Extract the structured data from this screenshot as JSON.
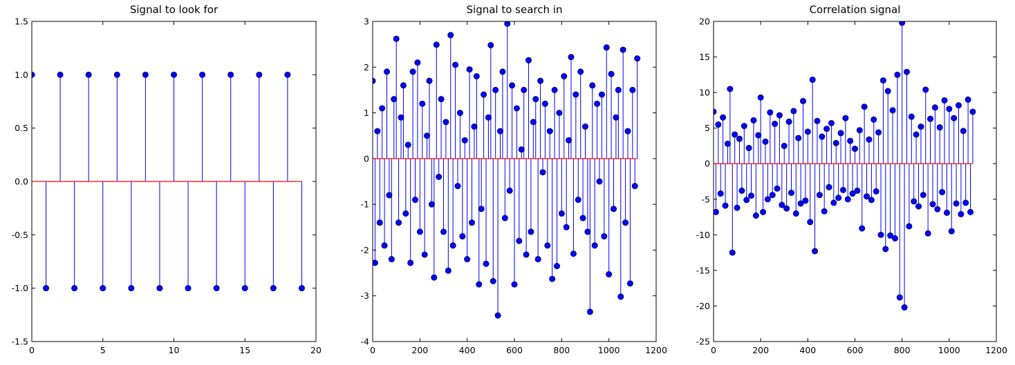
{
  "chart_data": [
    {
      "type": "stem",
      "title": "Signal to look for",
      "x": [
        0,
        1,
        2,
        3,
        4,
        5,
        6,
        7,
        8,
        9,
        10,
        11,
        12,
        13,
        14,
        15,
        16,
        17,
        18,
        19
      ],
      "values": [
        1,
        -1,
        1,
        -1,
        1,
        -1,
        1,
        -1,
        1,
        -1,
        1,
        -1,
        1,
        -1,
        1,
        -1,
        1,
        -1,
        1,
        -1
      ],
      "color": "#0000ff",
      "baseline_color": "#ff0000",
      "xlim": [
        0,
        20
      ],
      "xticks": [
        0,
        5,
        10,
        15,
        20
      ],
      "ylim": [
        -1.5,
        1.5
      ],
      "yticks": [
        -1.5,
        {
          "value": -1,
          "label": "-1.0"
        },
        -0.5,
        {
          "value": 0,
          "label": "0.0"
        },
        0.5,
        {
          "value": 1,
          "label": "1.0"
        },
        1.5
      ]
    },
    {
      "type": "stem",
      "title": "Signal to search in",
      "x": [
        0,
        10,
        20,
        30,
        40,
        50,
        60,
        70,
        80,
        90,
        100,
        110,
        120,
        130,
        140,
        150,
        160,
        170,
        180,
        190,
        200,
        210,
        220,
        230,
        240,
        250,
        260,
        270,
        280,
        290,
        300,
        310,
        320,
        330,
        340,
        350,
        360,
        370,
        380,
        390,
        400,
        410,
        420,
        430,
        440,
        450,
        460,
        470,
        480,
        490,
        500,
        510,
        520,
        530,
        540,
        550,
        560,
        570,
        580,
        590,
        600,
        610,
        620,
        630,
        640,
        650,
        660,
        670,
        680,
        690,
        700,
        710,
        720,
        730,
        740,
        750,
        760,
        770,
        780,
        790,
        800,
        810,
        820,
        830,
        840,
        850,
        860,
        870,
        880,
        890,
        900,
        910,
        920,
        930,
        940,
        950,
        960,
        970,
        980,
        990,
        1000,
        1010,
        1020,
        1030,
        1040,
        1050,
        1060,
        1070,
        1080,
        1090,
        1100,
        1110,
        1120
      ],
      "values": [
        1.7,
        -2.28,
        0.6,
        -1.4,
        1.1,
        -1.9,
        1.9,
        -0.8,
        -2.2,
        1.3,
        2.62,
        -1.4,
        0.9,
        1.6,
        -1.2,
        0.3,
        -2.28,
        1.9,
        -0.9,
        2.1,
        -1.6,
        1.2,
        -2.1,
        0.5,
        1.7,
        -1.0,
        -2.6,
        2.49,
        -0.4,
        1.3,
        -1.6,
        0.8,
        -2.45,
        2.7,
        -1.9,
        2.05,
        -0.6,
        1.0,
        -1.7,
        0.4,
        -2.2,
        1.95,
        -1.4,
        0.7,
        1.8,
        -2.75,
        -1.1,
        1.4,
        -2.3,
        0.9,
        2.48,
        -2.68,
        1.5,
        -3.43,
        0.6,
        1.9,
        -1.3,
        2.95,
        -0.7,
        1.6,
        -2.75,
        1.1,
        -1.8,
        0.2,
        1.5,
        -2.1,
        2.15,
        -1.6,
        0.8,
        1.3,
        -2.2,
        1.7,
        -0.3,
        1.2,
        -1.9,
        0.6,
        -2.63,
        1.5,
        -2.35,
        1.0,
        -1.2,
        1.8,
        -1.5,
        0.4,
        2.22,
        -2.08,
        1.4,
        -0.9,
        1.9,
        -1.3,
        0.7,
        -1.6,
        -3.35,
        1.6,
        -1.9,
        1.2,
        -0.5,
        1.4,
        -1.7,
        2.43,
        -2.53,
        1.85,
        -1.1,
        0.9,
        1.5,
        -3.02,
        2.38,
        -1.4,
        0.6,
        -2.73,
        1.5,
        -0.6,
        2.19
      ],
      "color": "#0000ff",
      "baseline_color": "#ff0000",
      "xlim": [
        0,
        1200
      ],
      "xticks": [
        0,
        200,
        400,
        600,
        800,
        1000,
        1200
      ],
      "ylim": [
        -4,
        3
      ],
      "yticks": [
        -4,
        -3,
        -2,
        -1,
        0,
        1,
        2,
        3
      ]
    },
    {
      "type": "stem",
      "title": "Correlation signal",
      "x": [
        0,
        10,
        20,
        30,
        40,
        50,
        60,
        70,
        80,
        90,
        100,
        110,
        120,
        130,
        140,
        150,
        160,
        170,
        180,
        190,
        200,
        210,
        220,
        230,
        240,
        250,
        260,
        270,
        280,
        290,
        300,
        310,
        320,
        330,
        340,
        350,
        360,
        370,
        380,
        390,
        400,
        410,
        420,
        430,
        440,
        450,
        460,
        470,
        480,
        490,
        500,
        510,
        520,
        530,
        540,
        550,
        560,
        570,
        580,
        590,
        600,
        610,
        620,
        630,
        640,
        650,
        660,
        670,
        680,
        690,
        700,
        710,
        720,
        730,
        740,
        750,
        760,
        770,
        780,
        790,
        800,
        810,
        820,
        830,
        840,
        850,
        860,
        870,
        880,
        890,
        900,
        910,
        920,
        930,
        940,
        950,
        960,
        970,
        980,
        990,
        1000,
        1010,
        1020,
        1030,
        1040,
        1050,
        1060,
        1070,
        1080,
        1090,
        1100
      ],
      "values": [
        7.3,
        -6.8,
        5.5,
        -4.2,
        6.5,
        -5.9,
        2.8,
        10.5,
        -12.5,
        4.1,
        -6.2,
        3.5,
        -3.8,
        5.3,
        -5.1,
        2.2,
        -4.5,
        6.1,
        -7.3,
        4.0,
        9.3,
        -6.8,
        3.1,
        -5.0,
        7.2,
        -4.4,
        5.6,
        -3.5,
        6.8,
        -5.8,
        2.5,
        -6.3,
        5.9,
        -4.1,
        7.4,
        -7.0,
        3.6,
        -5.6,
        8.8,
        -5.2,
        4.5,
        -8.2,
        11.8,
        -12.3,
        6.0,
        -4.4,
        3.8,
        -6.7,
        4.9,
        -3.3,
        5.7,
        -5.5,
        2.9,
        -4.8,
        4.3,
        -3.7,
        6.4,
        -5.0,
        3.2,
        -4.2,
        2.1,
        -3.8,
        4.7,
        -9.1,
        8.0,
        -4.6,
        3.4,
        -5.1,
        6.2,
        -3.9,
        4.4,
        -10.0,
        11.7,
        -12.0,
        10.2,
        -10.1,
        7.5,
        -10.5,
        12.5,
        -18.8,
        19.8,
        -20.2,
        12.9,
        -8.8,
        6.6,
        -5.3,
        4.1,
        -6.0,
        5.2,
        -4.4,
        10.4,
        -9.8,
        6.3,
        -5.7,
        7.9,
        -6.4,
        5.1,
        -4.0,
        8.9,
        -6.9,
        7.7,
        -9.5,
        6.4,
        -5.6,
        8.2,
        -7.1,
        4.6,
        -5.5,
        9.0,
        -6.8,
        7.3
      ],
      "color": "#0000ff",
      "baseline_color": "#ff0000",
      "xlim": [
        0,
        1200
      ],
      "xticks": [
        0,
        200,
        400,
        600,
        800,
        1000,
        1200
      ],
      "ylim": [
        -25,
        20
      ],
      "yticks": [
        -25,
        -20,
        -15,
        -10,
        -5,
        0,
        5,
        10,
        15,
        20
      ]
    }
  ]
}
